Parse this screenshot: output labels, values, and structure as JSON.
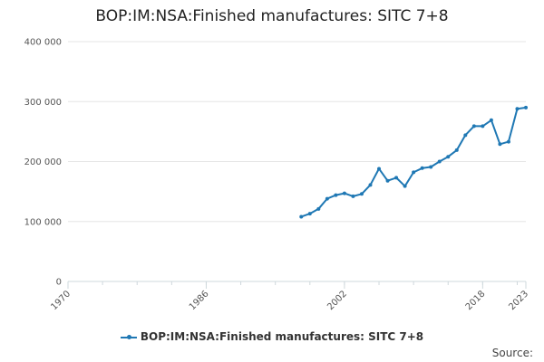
{
  "chart_data": {
    "type": "line",
    "title": "BOP:IM:NSA:Finished manufactures: SITC 7+8",
    "xlabel": "",
    "ylabel": "",
    "xlim": [
      1970,
      2023
    ],
    "ylim": [
      0,
      400000
    ],
    "y_ticks": [
      0,
      100000,
      200000,
      300000,
      400000
    ],
    "y_tick_labels": [
      "0",
      "100 000",
      "200 000",
      "300 000",
      "400 000"
    ],
    "x_ticks": [
      1970,
      1986,
      2002,
      2018,
      2023
    ],
    "x_tick_labels": [
      "1970",
      "1986",
      "2002",
      "2018",
      "2023"
    ],
    "grid": true,
    "legend_position": "bottom",
    "series": [
      {
        "name": "BOP:IM:NSA:Finished manufactures: SITC 7+8",
        "color": "#1f78b4",
        "x": [
          1997,
          1998,
          1999,
          2000,
          2001,
          2002,
          2003,
          2004,
          2005,
          2006,
          2007,
          2008,
          2009,
          2010,
          2011,
          2012,
          2013,
          2014,
          2015,
          2016,
          2017,
          2018,
          2019,
          2020,
          2021,
          2022,
          2023
        ],
        "values": [
          108000,
          113000,
          121000,
          138000,
          144000,
          147000,
          142000,
          146000,
          161000,
          188000,
          168000,
          173000,
          159000,
          182000,
          189000,
          191000,
          200000,
          208000,
          219000,
          244000,
          259000,
          259000,
          269000,
          229000,
          233000,
          288000,
          290000
        ]
      }
    ]
  },
  "legend": {
    "label": "BOP:IM:NSA:Finished manufactures: SITC 7+8"
  },
  "source_label": "Source:"
}
